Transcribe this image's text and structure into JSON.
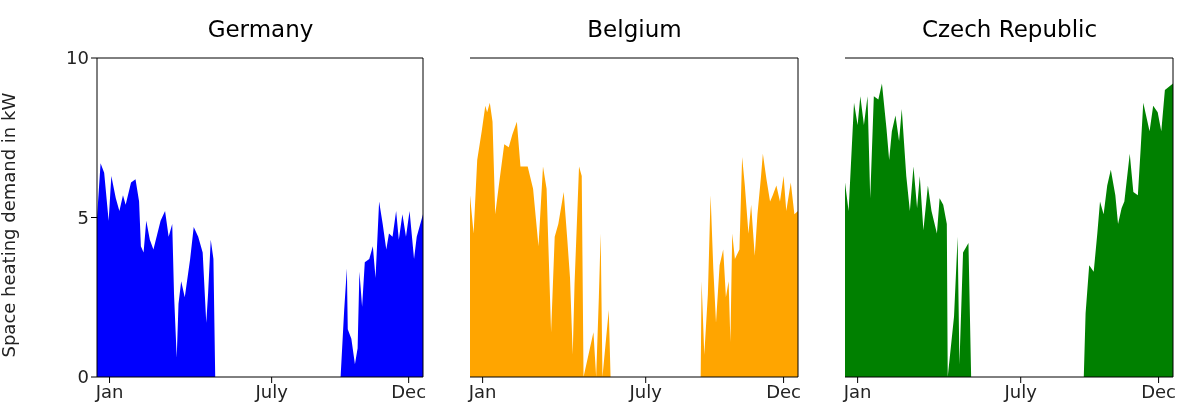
{
  "chart_data": [
    {
      "type": "area",
      "title": "Germany",
      "ylabel": "Space heating demand in kW",
      "xlim": [
        "--01-01",
        "--12-31"
      ],
      "xticks": [
        {
          "value": "--01-15",
          "label": "Jan"
        },
        {
          "value": "--07-15",
          "label": "July"
        },
        {
          "value": "--12-15",
          "label": "Dec"
        }
      ],
      "ylim": [
        0,
        10
      ],
      "yticks": [
        0,
        5,
        10
      ],
      "grid": false,
      "legend": false,
      "x": [
        "--01-01",
        "--01-05",
        "--01-09",
        "--01-14",
        "--01-17",
        "--01-22",
        "--01-26",
        "--01-30",
        "--02-02",
        "--02-08",
        "--02-13",
        "--02-17",
        "--02-19",
        "--02-22",
        "--02-25",
        "--03-01",
        "--03-05",
        "--03-13",
        "--03-18",
        "--03-22",
        "--03-26",
        "--03-28",
        "--03-31",
        "--04-02",
        "--04-05",
        "--04-09",
        "--04-15",
        "--04-19",
        "--04-24",
        "--04-29",
        "--05-03",
        "--05-05",
        "--05-08",
        "--05-11",
        "--05-13",
        "--09-29",
        "--09-30",
        "--10-04",
        "--10-07",
        "--10-08",
        "--10-12",
        "--10-16",
        "--10-19",
        "--10-21",
        "--10-24",
        "--10-27",
        "--11-01",
        "--11-05",
        "--11-08",
        "--11-12",
        "--11-16",
        "--11-20",
        "--11-23",
        "--11-27",
        "--12-01",
        "--12-04",
        "--12-08",
        "--12-12",
        "--12-16",
        "--12-21",
        "--12-24",
        "--12-31"
      ],
      "series": [
        {
          "color": "#0000ff",
          "values": [
            5.0,
            6.7,
            6.4,
            4.9,
            6.3,
            5.6,
            5.2,
            5.7,
            5.4,
            6.1,
            6.2,
            5.5,
            4.1,
            3.9,
            4.9,
            4.3,
            4.0,
            4.9,
            5.2,
            4.4,
            4.8,
            2.6,
            0.6,
            2.3,
            3.0,
            2.5,
            3.7,
            4.7,
            4.4,
            3.9,
            1.7,
            2.6,
            4.3,
            3.7,
            0,
            0,
            0,
            2.1,
            3.4,
            1.5,
            1.2,
            0.4,
            0.9,
            3.3,
            2.2,
            3.6,
            3.7,
            4.1,
            3.1,
            5.5,
            4.8,
            4.0,
            4.5,
            4.4,
            5.2,
            4.3,
            5.1,
            4.4,
            5.2,
            3.7,
            4.4,
            5.1
          ]
        }
      ]
    },
    {
      "type": "area",
      "title": "Belgium",
      "xlim": [
        "--01-01",
        "--12-31"
      ],
      "xticks": [
        {
          "value": "--01-15",
          "label": "Jan"
        },
        {
          "value": "--07-15",
          "label": "July"
        },
        {
          "value": "--12-15",
          "label": "Dec"
        }
      ],
      "ylim": [
        0,
        10
      ],
      "yticks": [
        0,
        5,
        10
      ],
      "tick_labels": "x",
      "grid": false,
      "legend": false,
      "x": [
        "--01-01",
        "--01-05",
        "--01-09",
        "--01-14",
        "--01-18",
        "--01-20",
        "--01-23",
        "--01-26",
        "--01-29",
        "--02-02",
        "--02-08",
        "--02-13",
        "--02-17",
        "--02-22",
        "--02-26",
        "--03-06",
        "--03-12",
        "--03-18",
        "--03-23",
        "--03-27",
        "--04-01",
        "--04-05",
        "--04-09",
        "--04-15",
        "--04-19",
        "--04-22",
        "--04-25",
        "--04-27",
        "--05-02",
        "--05-05",
        "--05-07",
        "--05-18",
        "--05-21",
        "--05-24",
        "--05-26",
        "--05-28",
        "--06-04",
        "--06-06",
        "--09-14",
        "--09-15",
        "--09-18",
        "--09-22",
        "--09-25",
        "--09-28",
        "--10-01",
        "--10-05",
        "--10-09",
        "--10-12",
        "--10-15",
        "--10-17",
        "--10-19",
        "--10-22",
        "--10-27",
        "--10-30",
        "--11-02",
        "--11-06",
        "--11-09",
        "--11-13",
        "--11-16",
        "--11-20",
        "--11-22",
        "--11-26",
        "--11-30",
        "--12-03",
        "--12-07",
        "--12-11",
        "--12-15",
        "--12-18",
        "--12-23",
        "--12-27",
        "--12-31"
      ],
      "series": [
        {
          "color": "#ffa500",
          "values": [
            5.7,
            4.5,
            6.8,
            7.7,
            8.5,
            8.3,
            8.6,
            8.0,
            5.1,
            6.0,
            7.3,
            7.2,
            7.6,
            8.0,
            6.6,
            6.6,
            5.9,
            4.1,
            6.6,
            5.9,
            1.4,
            4.4,
            4.8,
            5.8,
            4.3,
            3.1,
            0.7,
            2.9,
            6.6,
            6.3,
            0,
            1.4,
            0,
            2.5,
            4.5,
            0,
            2.1,
            0,
            0,
            3.0,
            0.7,
            2.6,
            5.7,
            3.4,
            1.7,
            3.5,
            4.0,
            2.5,
            3.0,
            1.1,
            4.5,
            3.7,
            4.0,
            6.9,
            6.0,
            4.5,
            5.4,
            3.8,
            5.1,
            6.3,
            7.0,
            6.2,
            5.5,
            5.7,
            6.0,
            5.5,
            6.3,
            5.2,
            6.1,
            5.1,
            5.2
          ]
        }
      ]
    },
    {
      "type": "area",
      "title": "Czech Republic",
      "xlim": [
        "--01-01",
        "--12-31"
      ],
      "xticks": [
        {
          "value": "--01-15",
          "label": "Jan"
        },
        {
          "value": "--07-15",
          "label": "July"
        },
        {
          "value": "--12-15",
          "label": "Dec"
        }
      ],
      "ylim": [
        0,
        10
      ],
      "yticks": [
        0,
        5,
        10
      ],
      "tick_labels": "x",
      "grid": false,
      "legend": false,
      "x": [
        "--01-01",
        "--01-05",
        "--01-11",
        "--01-15",
        "--01-18",
        "--01-22",
        "--01-26",
        "--01-29",
        "--02-02",
        "--02-07",
        "--02-11",
        "--02-16",
        "--02-19",
        "--02-22",
        "--02-26",
        "--03-02",
        "--03-05",
        "--03-10",
        "--03-14",
        "--03-18",
        "--03-22",
        "--03-25",
        "--03-29",
        "--04-03",
        "--04-07",
        "--04-13",
        "--04-16",
        "--04-20",
        "--04-24",
        "--04-25",
        "--05-02",
        "--05-06",
        "--05-08",
        "--05-12",
        "--05-18",
        "--05-21",
        "--09-23",
        "--09-25",
        "--09-29",
        "--10-04",
        "--10-08",
        "--10-11",
        "--10-15",
        "--10-19",
        "--10-23",
        "--10-28",
        "--10-31",
        "--11-04",
        "--11-07",
        "--11-13",
        "--11-17",
        "--11-22",
        "--11-25",
        "--11-28",
        "--12-05",
        "--12-09",
        "--12-14",
        "--12-18",
        "--12-22",
        "--12-31"
      ],
      "series": [
        {
          "color": "#008000",
          "values": [
            6.1,
            5.2,
            8.6,
            7.9,
            8.8,
            7.9,
            8.8,
            5.6,
            8.8,
            8.7,
            9.2,
            7.8,
            6.8,
            7.7,
            8.2,
            7.4,
            8.4,
            6.3,
            5.2,
            6.6,
            5.3,
            6.3,
            4.6,
            6.0,
            5.2,
            4.5,
            5.6,
            5.4,
            4.8,
            0,
            1.9,
            4.4,
            0.4,
            3.9,
            4.2,
            0,
            0,
            2.0,
            3.5,
            3.3,
            4.5,
            5.5,
            5.1,
            6.0,
            6.5,
            5.7,
            4.8,
            5.3,
            5.5,
            7.0,
            5.8,
            5.7,
            7.1,
            8.6,
            7.7,
            8.5,
            8.3,
            7.7,
            9.0,
            9.2
          ]
        }
      ]
    }
  ]
}
